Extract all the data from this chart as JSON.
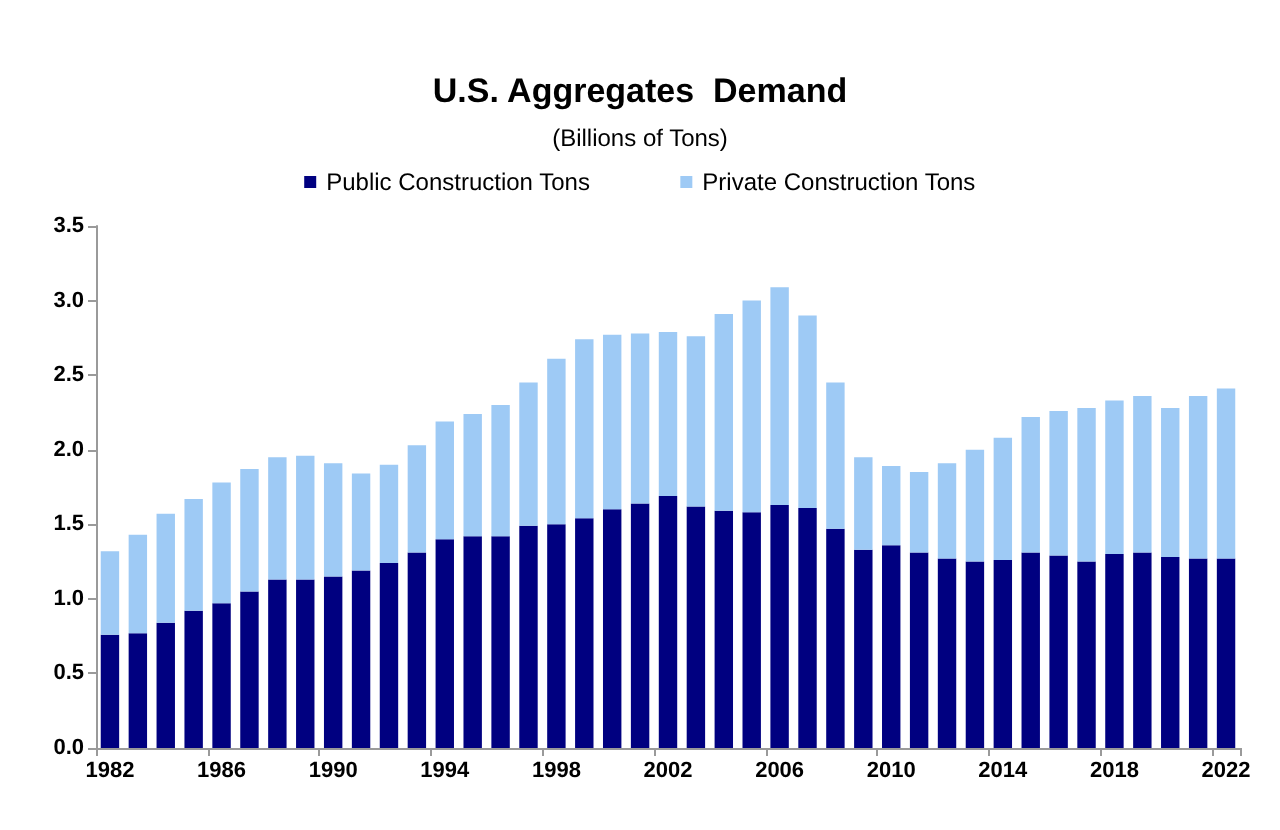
{
  "chart_data": {
    "type": "bar",
    "title": "U.S. Aggregates  Demand",
    "subtitle": "(Billions of Tons)",
    "categories": [
      "1982",
      null,
      null,
      null,
      "1986",
      null,
      null,
      null,
      "1990",
      null,
      null,
      null,
      "1994",
      null,
      null,
      null,
      "1998",
      null,
      null,
      null,
      "2002",
      null,
      null,
      null,
      "2006",
      null,
      null,
      null,
      "2010",
      null,
      null,
      null,
      "2014",
      null,
      null,
      null,
      "2018",
      null,
      null,
      null,
      "2022"
    ],
    "series": [
      {
        "name": "Public Construction Tons",
        "color": "#000080",
        "values": [
          0.76,
          0.77,
          0.84,
          0.92,
          0.97,
          1.05,
          1.13,
          1.13,
          1.15,
          1.19,
          1.24,
          1.31,
          1.4,
          1.42,
          1.42,
          1.49,
          1.5,
          1.54,
          1.6,
          1.64,
          1.69,
          1.62,
          1.59,
          1.58,
          1.63,
          1.61,
          1.47,
          1.33,
          1.36,
          1.31,
          1.27,
          1.25,
          1.26,
          1.31,
          1.29,
          1.25,
          1.3,
          1.31,
          1.28,
          1.27,
          1.27
        ]
      },
      {
        "name": "Private Construction Tons",
        "color": "#9ecaf5",
        "values": [
          0.56,
          0.66,
          0.73,
          0.75,
          0.81,
          0.82,
          0.82,
          0.83,
          0.76,
          0.65,
          0.66,
          0.72,
          0.79,
          0.82,
          0.88,
          0.96,
          1.11,
          1.2,
          1.17,
          1.14,
          1.1,
          1.14,
          1.32,
          1.42,
          1.46,
          1.29,
          0.98,
          0.62,
          0.53,
          0.54,
          0.64,
          0.75,
          0.82,
          0.91,
          0.97,
          1.03,
          1.03,
          1.05,
          1.0,
          1.09,
          1.14
        ]
      }
    ],
    "stacked": true,
    "ylim": [
      0,
      3.5
    ],
    "yticks": [
      {
        "value": 0,
        "label": "0.0"
      },
      0.5,
      {
        "value": 1,
        "label": "1.0"
      },
      1.5,
      {
        "value": 2,
        "label": "2.0"
      },
      2.5,
      {
        "value": 3,
        "label": "3.0"
      },
      3.5
    ],
    "legend": "top"
  }
}
